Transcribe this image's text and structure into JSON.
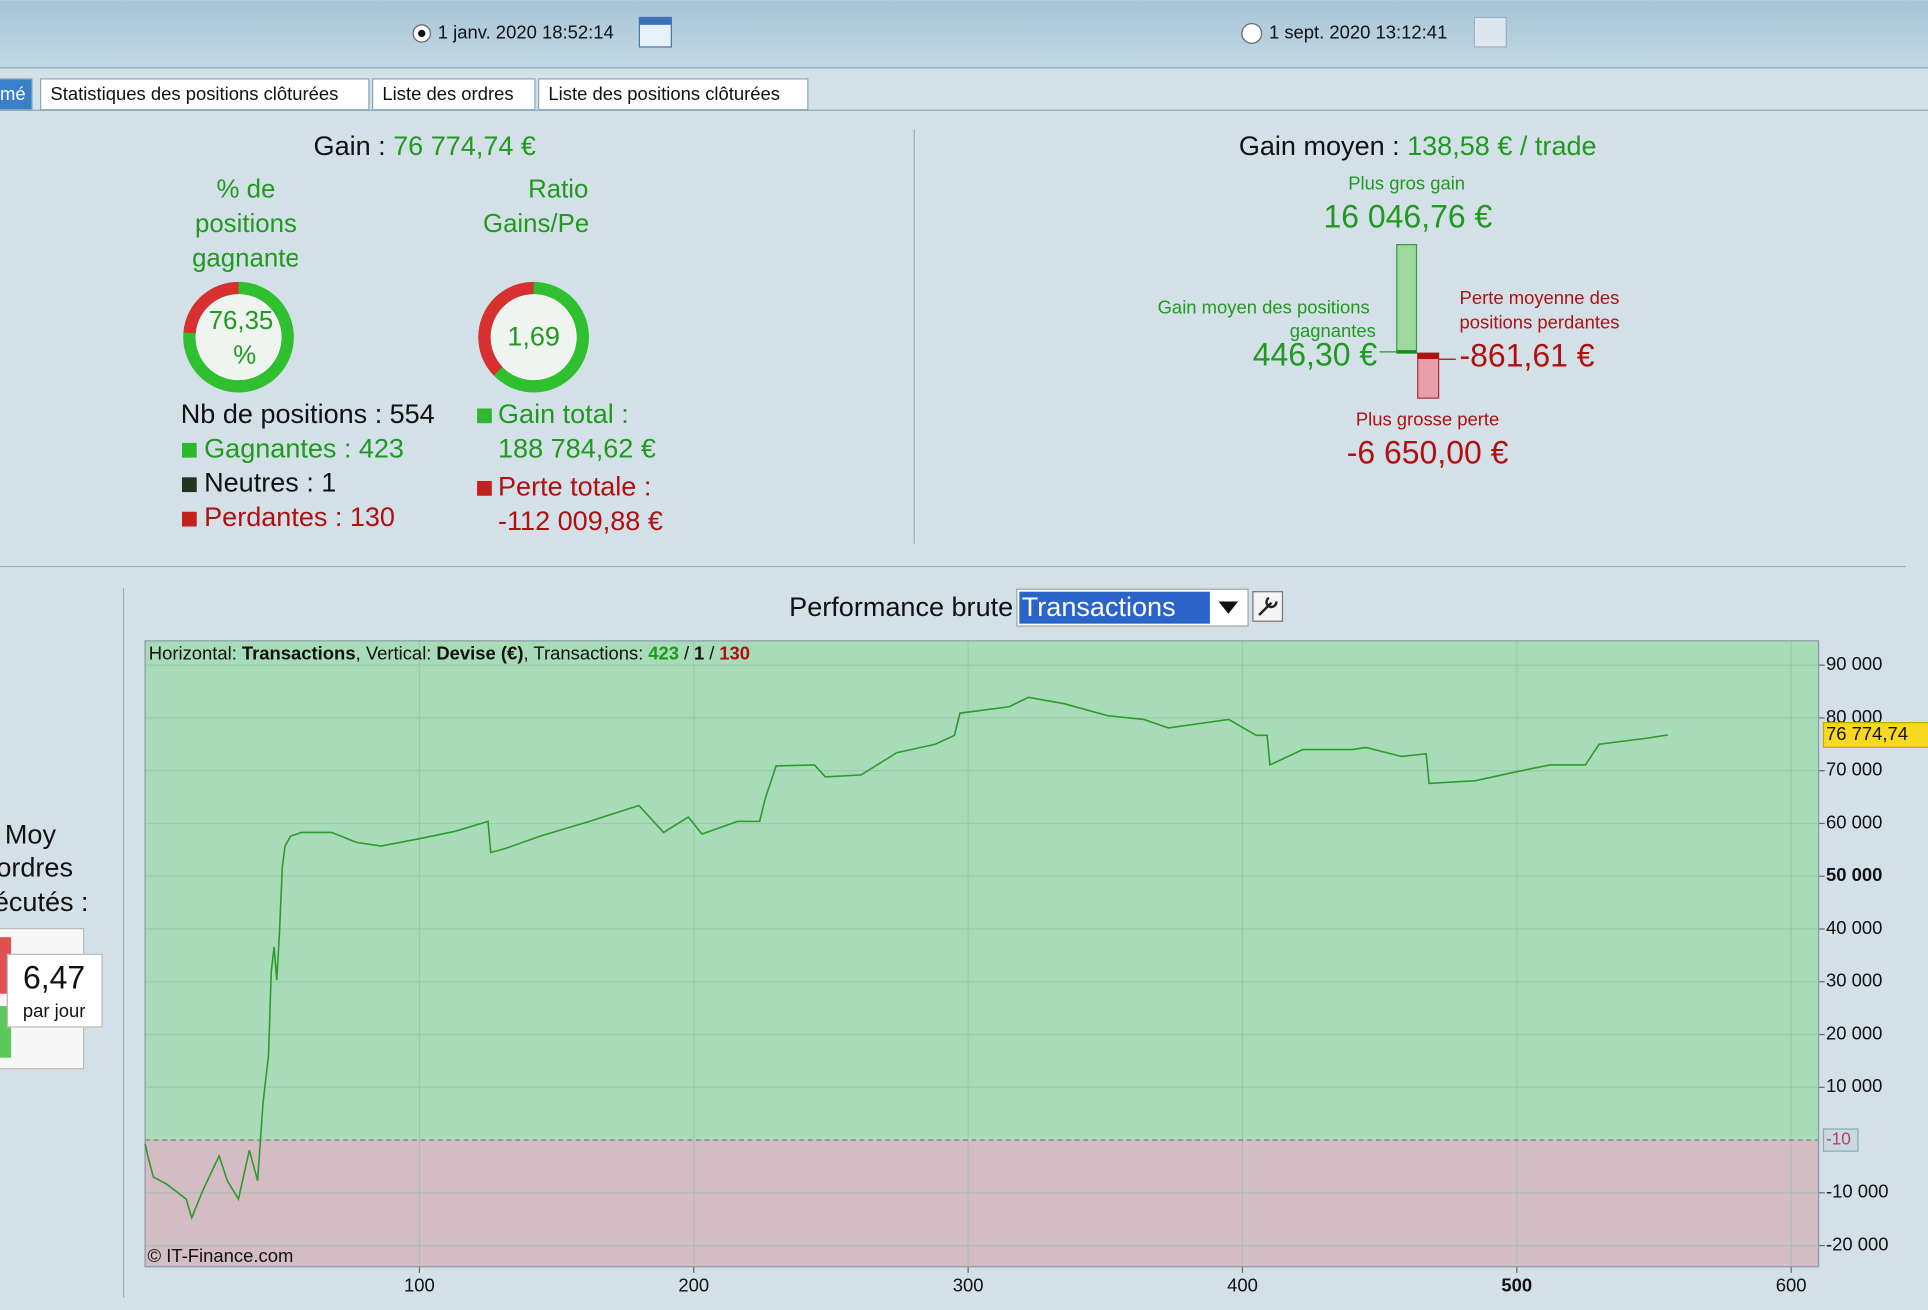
{
  "header": {
    "start_date": "1 janv. 2020 18:52:14",
    "end_date": "1 sept. 2020 13:12:41"
  },
  "tabs": [
    "mé",
    "Statistiques des positions clôturées",
    "Liste des ordres",
    "Liste des positions clôturées"
  ],
  "summary": {
    "gain_label": "Gain :",
    "gain_value": "76 774,74 €",
    "win_rate_title": [
      "% de",
      "positions",
      "gagnante"
    ],
    "win_rate": {
      "value": 76.35,
      "label": "76,35"
    },
    "win_rate_unit": "%",
    "ratio_title": [
      "Ratio",
      "Gains/Pe"
    ],
    "ratio": {
      "value": 1.69,
      "label": "1,69"
    },
    "positions_label": "Nb de positions :",
    "positions": 554,
    "winners_label": "Gagnantes :",
    "winners": 423,
    "neutral_label": "Neutres :",
    "neutral": 1,
    "losers_label": "Perdantes :",
    "losers": 130,
    "gain_total_label": "Gain total :",
    "gain_total": "188 784,62 €",
    "loss_total_label": "Perte totale :",
    "loss_total": "-112 009,88 €"
  },
  "averages": {
    "title": "Gain moyen :",
    "value": "138,58 € / trade",
    "max_gain_label": "Plus gros gain",
    "max_gain": {
      "value": 16046.76,
      "label": "16 046,76 €"
    },
    "avg_win_label": [
      "Gain moyen des positions",
      "gagnantes"
    ],
    "avg_win": {
      "value": 446.3,
      "label": "446,30 €"
    },
    "avg_loss_label": [
      "Perte moyenne des",
      "positions perdantes"
    ],
    "avg_loss": {
      "value": -861.61,
      "label": "-861,61 €"
    },
    "max_loss_label": "Plus grosse perte",
    "max_loss": {
      "value": -6650,
      "label": "-6 650,00 €"
    }
  },
  "orders": {
    "label": [
      "Moy",
      "ordres",
      "écutés :"
    ],
    "value": "6,47",
    "unit": "par jour"
  },
  "chart_data": {
    "type": "line",
    "title": "Performance brute",
    "selector": "Transactions",
    "info": {
      "h_label": "Horizontal:",
      "h_value": "Transactions",
      "v_label": ", Vertical:",
      "v_value": "Devise (€)",
      "t_label": ", Transactions:",
      "sep": "/"
    },
    "copyright": "© IT-Finance.com",
    "last_value_label": "76 774,74",
    "zero_label": "-10",
    "color": "#2e9a2e",
    "x": [
      0,
      1,
      3,
      8,
      12,
      15,
      17,
      21,
      27,
      30,
      34,
      38,
      41,
      43,
      45,
      46,
      47,
      48,
      49,
      50,
      51,
      53,
      57,
      68,
      77,
      86,
      100,
      113,
      125,
      126,
      131,
      144,
      162,
      180,
      189,
      198,
      203,
      216,
      224,
      226,
      230,
      244,
      248,
      261,
      274,
      288,
      295,
      297,
      315,
      322,
      335,
      351,
      364,
      373,
      395,
      405,
      409,
      410,
      422,
      440,
      445,
      458,
      467,
      468,
      485,
      499,
      512,
      525,
      530,
      548,
      555
    ],
    "values": [
      -700,
      -3000,
      -7000,
      -8400,
      -10000,
      -11200,
      -14700,
      -9600,
      -3000,
      -7700,
      -11200,
      -1900,
      -7700,
      7000,
      16100,
      31900,
      36600,
      30300,
      39400,
      51700,
      55700,
      57600,
      58300,
      58300,
      56400,
      55700,
      57100,
      58500,
      60400,
      54500,
      55200,
      57600,
      60400,
      63400,
      58300,
      61200,
      58000,
      60400,
      60400,
      64600,
      70900,
      71100,
      68800,
      69200,
      73400,
      75000,
      76700,
      80900,
      82100,
      83900,
      82700,
      80400,
      79700,
      78100,
      79700,
      76700,
      76700,
      71100,
      74000,
      74000,
      74400,
      72700,
      73200,
      67600,
      68100,
      69700,
      71100,
      71100,
      75000,
      76200,
      76775
    ],
    "xlim": [
      0,
      610
    ],
    "ylim": [
      -24000,
      94600
    ],
    "xticks": [
      100,
      200,
      300,
      400,
      500,
      600
    ],
    "yticks": [
      {
        "value": -20000,
        "label": "-20 000"
      },
      {
        "value": -10000,
        "label": "-10 000"
      },
      {
        "value": 10000,
        "label": "10 000"
      },
      {
        "value": 20000,
        "label": "20 000"
      },
      {
        "value": 30000,
        "label": "30 000"
      },
      {
        "value": 40000,
        "label": "40 000"
      },
      {
        "value": 50000,
        "label": "50 000"
      },
      {
        "value": 60000,
        "label": "60 000"
      },
      {
        "value": 70000,
        "label": "70 000"
      },
      {
        "value": 80000,
        "label": "80 000"
      },
      {
        "value": 90000,
        "label": "90 000"
      }
    ],
    "grid": true
  }
}
